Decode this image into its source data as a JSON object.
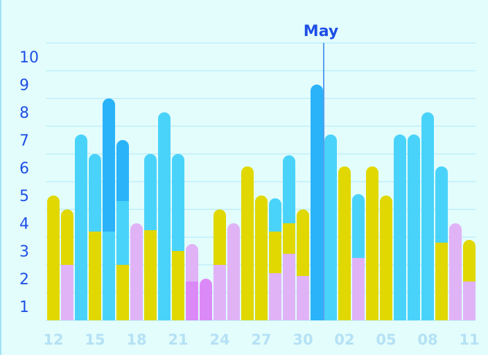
{
  "chart_data": {
    "type": "bar",
    "stacked": true,
    "marker_label": "May",
    "y_ticks": [
      "1",
      "2",
      "3",
      "4",
      "5",
      "6",
      "7",
      "8",
      "9",
      "10"
    ],
    "ylim": [
      0.5,
      10.5
    ],
    "grid": true,
    "x_tick_labels": [
      "12",
      "15",
      "18",
      "21",
      "24",
      "27",
      "30",
      "02",
      "05",
      "08",
      "11"
    ],
    "colors": {
      "blue": "#4ad3fa",
      "deep_blue": "#2ab3f9",
      "yellow": "#e0d800",
      "lavender": "#e0b3f7",
      "violet": "#dc89f8"
    },
    "bars": [
      {
        "segments": [
          {
            "color": "yellow",
            "from": 0.5,
            "to": 5.0
          }
        ]
      },
      {
        "segments": [
          {
            "color": "lavender",
            "from": 0.5,
            "to": 2.5
          },
          {
            "color": "yellow",
            "from": 2.5,
            "to": 4.5
          }
        ]
      },
      {
        "segments": [
          {
            "color": "blue",
            "from": 0.5,
            "to": 7.2
          }
        ]
      },
      {
        "segments": [
          {
            "color": "yellow",
            "from": 0.5,
            "to": 3.7
          },
          {
            "color": "blue",
            "from": 3.7,
            "to": 6.5
          }
        ]
      },
      {
        "segments": [
          {
            "color": "blue",
            "from": 0.5,
            "to": 3.7
          },
          {
            "color": "deep_blue",
            "from": 3.7,
            "to": 8.5
          }
        ]
      },
      {
        "segments": [
          {
            "color": "yellow",
            "from": 0.5,
            "to": 2.5
          },
          {
            "color": "blue",
            "from": 2.5,
            "to": 4.8
          },
          {
            "color": "deep_blue",
            "from": 4.8,
            "to": 7.0
          }
        ]
      },
      {
        "segments": [
          {
            "color": "lavender",
            "from": 0.5,
            "to": 4.0
          }
        ]
      },
      {
        "segments": [
          {
            "color": "yellow",
            "from": 0.5,
            "to": 3.75
          },
          {
            "color": "blue",
            "from": 3.75,
            "to": 6.5
          }
        ]
      },
      {
        "segments": [
          {
            "color": "blue",
            "from": 0.5,
            "to": 8.0
          }
        ]
      },
      {
        "segments": [
          {
            "color": "yellow",
            "from": 0.5,
            "to": 3.0
          },
          {
            "color": "blue",
            "from": 3.0,
            "to": 6.5
          }
        ]
      },
      {
        "segments": [
          {
            "color": "violet",
            "from": 0.5,
            "to": 1.9
          },
          {
            "color": "lavender",
            "from": 1.9,
            "to": 3.25
          }
        ]
      },
      {
        "segments": [
          {
            "color": "violet",
            "from": 0.5,
            "to": 2.0
          }
        ]
      },
      {
        "segments": [
          {
            "color": "lavender",
            "from": 0.5,
            "to": 2.5
          },
          {
            "color": "yellow",
            "from": 2.5,
            "to": 4.5
          }
        ]
      },
      {
        "segments": [
          {
            "color": "lavender",
            "from": 0.5,
            "to": 4.0
          }
        ]
      },
      {
        "segments": [
          {
            "color": "yellow",
            "from": 0.5,
            "to": 6.05
          }
        ]
      },
      {
        "segments": [
          {
            "color": "yellow",
            "from": 0.5,
            "to": 5.0
          }
        ]
      },
      {
        "segments": [
          {
            "color": "lavender",
            "from": 0.5,
            "to": 2.2
          },
          {
            "color": "yellow",
            "from": 2.2,
            "to": 3.7
          },
          {
            "color": "blue",
            "from": 3.7,
            "to": 4.9
          }
        ]
      },
      {
        "segments": [
          {
            "color": "lavender",
            "from": 0.5,
            "to": 2.9
          },
          {
            "color": "yellow",
            "from": 2.9,
            "to": 4.0
          },
          {
            "color": "blue",
            "from": 4.0,
            "to": 6.45
          }
        ]
      },
      {
        "segments": [
          {
            "color": "lavender",
            "from": 0.5,
            "to": 2.1
          },
          {
            "color": "yellow",
            "from": 2.1,
            "to": 4.5
          }
        ]
      },
      {
        "segments": [
          {
            "color": "deep_blue",
            "from": 0.5,
            "to": 9.0
          }
        ]
      },
      {
        "segments": [
          {
            "color": "blue",
            "from": 0.5,
            "to": 7.2
          }
        ]
      },
      {
        "segments": [
          {
            "color": "yellow",
            "from": 0.5,
            "to": 6.05
          }
        ]
      },
      {
        "segments": [
          {
            "color": "lavender",
            "from": 0.5,
            "to": 2.75
          },
          {
            "color": "blue",
            "from": 2.75,
            "to": 5.05
          }
        ]
      },
      {
        "segments": [
          {
            "color": "yellow",
            "from": 0.5,
            "to": 6.05
          }
        ]
      },
      {
        "segments": [
          {
            "color": "yellow",
            "from": 0.5,
            "to": 5.0
          }
        ]
      },
      {
        "segments": [
          {
            "color": "blue",
            "from": 0.5,
            "to": 7.2
          }
        ]
      },
      {
        "segments": [
          {
            "color": "blue",
            "from": 0.5,
            "to": 7.2
          }
        ]
      },
      {
        "segments": [
          {
            "color": "blue",
            "from": 0.5,
            "to": 8.0
          }
        ]
      },
      {
        "segments": [
          {
            "color": "yellow",
            "from": 0.5,
            "to": 3.3
          },
          {
            "color": "blue",
            "from": 3.3,
            "to": 6.05
          }
        ]
      },
      {
        "segments": [
          {
            "color": "lavender",
            "from": 0.5,
            "to": 4.0
          }
        ]
      },
      {
        "segments": [
          {
            "color": "lavender",
            "from": 0.5,
            "to": 1.9
          },
          {
            "color": "yellow",
            "from": 1.9,
            "to": 3.4
          }
        ]
      }
    ]
  }
}
